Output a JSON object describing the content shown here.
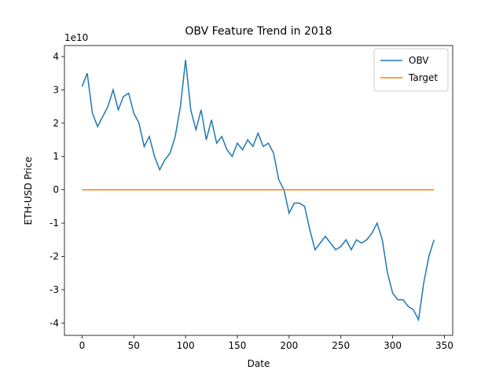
{
  "chart_data": {
    "type": "line",
    "title": "OBV Feature Trend in 2018",
    "x_label": "Date",
    "y_label": "ETH-USD Price",
    "y_offset_label": "1e10",
    "xlim": [
      -17,
      358
    ],
    "ylim": [
      -4.37,
      4.33
    ],
    "xticks": [
      0,
      50,
      100,
      150,
      200,
      250,
      300,
      350
    ],
    "yticks": [
      -4,
      -3,
      -2,
      -1,
      0,
      1,
      2,
      3,
      4
    ],
    "legend": "upper right",
    "grid": false,
    "series": [
      {
        "name": "OBV",
        "color": "#1f77b4",
        "x": [
          0,
          5,
          10,
          15,
          20,
          25,
          30,
          35,
          40,
          45,
          50,
          55,
          60,
          65,
          70,
          75,
          80,
          85,
          90,
          95,
          100,
          105,
          110,
          115,
          120,
          125,
          130,
          135,
          140,
          145,
          150,
          155,
          160,
          165,
          170,
          175,
          180,
          185,
          190,
          195,
          200,
          205,
          210,
          215,
          220,
          225,
          230,
          235,
          240,
          245,
          250,
          255,
          260,
          265,
          270,
          275,
          280,
          285,
          290,
          295,
          300,
          305,
          310,
          315,
          320,
          325,
          330,
          335,
          340
        ],
        "values": [
          3.1,
          3.5,
          2.3,
          1.9,
          2.2,
          2.5,
          3.0,
          2.4,
          2.8,
          2.9,
          2.3,
          2.0,
          1.3,
          1.6,
          1.0,
          0.6,
          0.9,
          1.1,
          1.6,
          2.5,
          3.9,
          2.4,
          1.8,
          2.4,
          1.5,
          2.1,
          1.4,
          1.6,
          1.2,
          1.0,
          1.4,
          1.2,
          1.5,
          1.3,
          1.7,
          1.3,
          1.4,
          1.1,
          0.3,
          0.0,
          -0.7,
          -0.4,
          -0.4,
          -0.5,
          -1.2,
          -1.8,
          -1.6,
          -1.4,
          -1.6,
          -1.8,
          -1.7,
          -1.5,
          -1.8,
          -1.5,
          -1.6,
          -1.5,
          -1.3,
          -1.0,
          -1.5,
          -2.5,
          -3.1,
          -3.3,
          -3.3,
          -3.5,
          -3.6,
          -3.9,
          -2.8,
          -2.0,
          -1.5
        ]
      },
      {
        "name": "Target",
        "color": "#ff7f0e",
        "x": [
          0,
          340
        ],
        "values": [
          0,
          0
        ]
      }
    ]
  }
}
